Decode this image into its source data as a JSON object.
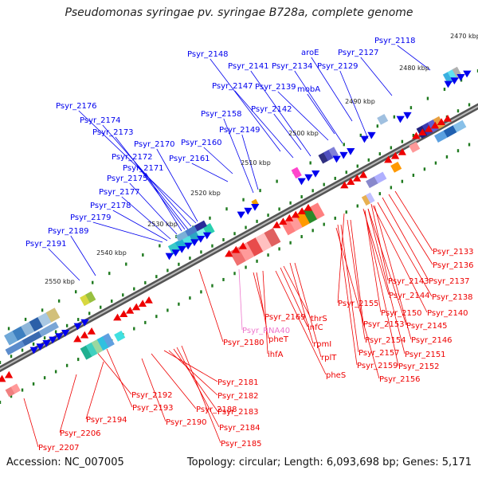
{
  "title": "Pseudomonas syringae pv. syringae B728a, complete genome",
  "accession": "Accession: NC_007005",
  "topology": "Topology: circular; Length: 6,093,698 bp; Genes: 5,171",
  "ruler_ticks": [
    "2470 kbp",
    "2480 kbp",
    "2490 kbp",
    "2500 kbp",
    "2510 kbp",
    "2520 kbp",
    "2530 kbp",
    "2540 kbp",
    "2550 kbp"
  ],
  "forward_labels": [
    "Psyr_2118",
    "Psyr_2127",
    "aroE",
    "Psyr_2129",
    "Psyr_2134",
    "Psyr_2141",
    "Psyr_2148",
    "Psyr_2139",
    "mobA",
    "Psyr_2147",
    "Psyr_2142",
    "Psyr_2176",
    "Psyr_2158",
    "Psyr_2174",
    "Psyr_2149",
    "Psyr_2173",
    "Psyr_2170",
    "Psyr_2160",
    "Psyr_2172",
    "Psyr_2161",
    "Psyr_2171",
    "Psyr_2175",
    "Psyr_2177",
    "Psyr_2178",
    "Psyr_2179",
    "Psyr_2189",
    "Psyr_2191"
  ],
  "reverse_labels": [
    "Psyr_2133",
    "Psyr_2136",
    "Psyr_2137",
    "Psyr_2143",
    "Psyr_2138",
    "Psyr_2144",
    "Psyr_2140",
    "Psyr_2155",
    "Psyr_2150",
    "Psyr_2145",
    "Psyr_2169",
    "thrS",
    "Psyr_2153",
    "Psyr_RNA40",
    "infC",
    "Psyr_2146",
    "Psyr_2154",
    "pheT",
    "rpmI",
    "Psyr_2180",
    "Psyr_2157",
    "Psyr_2151",
    "ihfA",
    "rplT",
    "Psyr_2159",
    "Psyr_2152",
    "pheS",
    "Psyr_2156",
    "Psyr_2181",
    "Psyr_2192",
    "Psyr_2182",
    "Psyr_2193",
    "Psyr_2188",
    "Psyr_2183",
    "Psyr_2194",
    "Psyr_2190",
    "Psyr_2184",
    "Psyr_2206",
    "Psyr_2185",
    "Psyr_2207"
  ],
  "colors": {
    "forward": "#0000ee",
    "reverse": "#ee0000",
    "rna": "#ee77cc",
    "backbone": "#555555",
    "tick": "#1f7a1f"
  }
}
